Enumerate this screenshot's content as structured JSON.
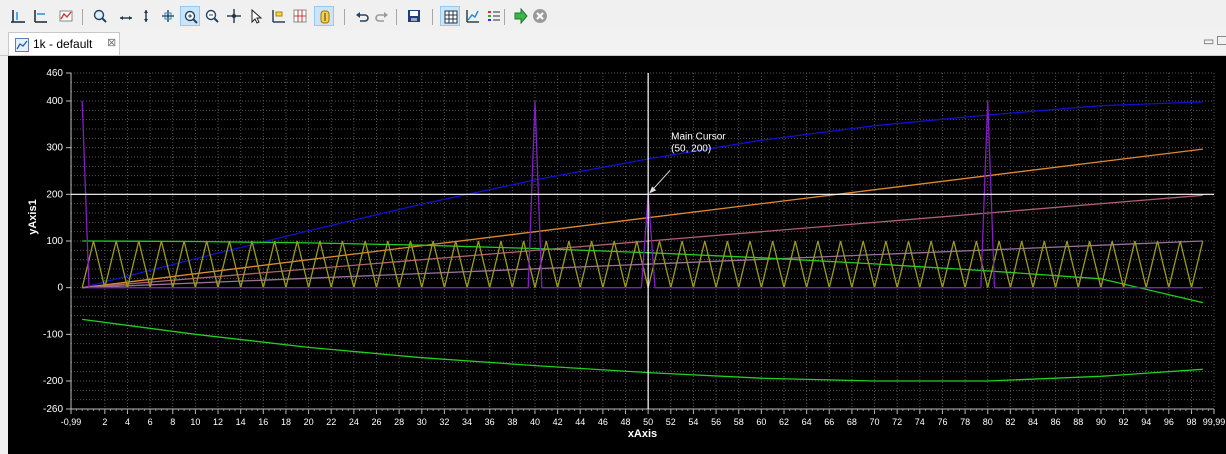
{
  "toolbar": {
    "icons": [
      {
        "name": "x-axis-icon",
        "active": false
      },
      {
        "name": "y-axis-icon",
        "active": false
      },
      {
        "name": "add-trace-icon",
        "active": false
      },
      {
        "name": "zoom-icon",
        "active": false
      },
      {
        "name": "horizontal-zoom-icon",
        "active": false
      },
      {
        "name": "vertical-zoom-icon",
        "active": false
      },
      {
        "name": "zoom-fit-icon",
        "active": false
      },
      {
        "name": "zoom-in-icon",
        "active": true
      },
      {
        "name": "zoom-out-icon",
        "active": false
      },
      {
        "name": "pan-icon",
        "active": false
      },
      {
        "name": "pointer-icon",
        "active": false
      },
      {
        "name": "annotation-icon",
        "active": false
      },
      {
        "name": "grid-annotation-icon",
        "active": false
      },
      {
        "name": "cursor-icon",
        "active": true
      },
      {
        "name": "undo-icon",
        "active": false
      },
      {
        "name": "redo-icon",
        "active": false
      },
      {
        "name": "save-snapshot-icon",
        "active": false
      },
      {
        "name": "grid-icon",
        "active": true
      },
      {
        "name": "autoscale-icon",
        "active": false
      },
      {
        "name": "legend-icon",
        "active": false
      },
      {
        "name": "run-icon",
        "active": false
      },
      {
        "name": "stop-icon",
        "active": false
      }
    ]
  },
  "tab": {
    "label": "1k - default",
    "close_glyph": "⊠"
  },
  "window_controls": {
    "minimize_glyph": "▭"
  },
  "colors": {
    "background": "#000000",
    "grid": "#555555",
    "axis_text": "#ffffff",
    "cursor": "#ffffff"
  },
  "chart_data": {
    "type": "line",
    "xlabel": "xAxis",
    "ylabel": "yAxis1",
    "xlim": [
      -0.99,
      99.99
    ],
    "ylim": [
      -260,
      460
    ],
    "x_ticks": [
      "-0,99",
      "2",
      "4",
      "6",
      "8",
      "10",
      "12",
      "14",
      "16",
      "18",
      "20",
      "22",
      "24",
      "26",
      "28",
      "30",
      "32",
      "34",
      "36",
      "38",
      "40",
      "42",
      "44",
      "46",
      "48",
      "50",
      "52",
      "54",
      "56",
      "58",
      "60",
      "62",
      "64",
      "66",
      "68",
      "70",
      "72",
      "74",
      "76",
      "78",
      "80",
      "82",
      "84",
      "86",
      "88",
      "90",
      "92",
      "94",
      "96",
      "98",
      "99,99"
    ],
    "y_ticks": [
      "460",
      "400",
      "300",
      "200",
      "100",
      "0",
      "-100",
      "-200",
      "-260"
    ],
    "grid": true,
    "cursor": {
      "label": "Main Cursor",
      "coords": "(50, 200)",
      "x": 50,
      "y": 200
    },
    "series": [
      {
        "color": "#1010d0",
        "x": [
          0,
          10,
          20,
          30,
          40,
          50,
          60,
          70,
          80,
          90,
          99
        ],
        "values": [
          0,
          62,
          122,
          179,
          231,
          276,
          316,
          347,
          370,
          390,
          398
        ]
      },
      {
        "color": "#e08a30",
        "x": [
          0,
          99
        ],
        "values": [
          0,
          297
        ]
      },
      {
        "color": "#b06070",
        "x": [
          0,
          99
        ],
        "values": [
          0,
          198
        ]
      },
      {
        "color": "#9a6fa0",
        "x": [
          0,
          99
        ],
        "values": [
          0,
          100
        ]
      },
      {
        "color": "#20d020",
        "x": [
          0,
          10,
          20,
          30,
          40,
          50,
          60,
          70,
          80,
          90,
          99
        ],
        "values": [
          100,
          99,
          96,
          91,
          84,
          75,
          64,
          51,
          36,
          19,
          -32
        ]
      },
      {
        "color": "#20d020",
        "x": [
          0,
          10,
          20,
          30,
          40,
          50,
          60,
          70,
          80,
          90,
          99
        ],
        "values": [
          -68,
          -100,
          -128,
          -150,
          -167,
          -182,
          -194,
          -200,
          -200,
          -190,
          -175
        ]
      },
      {
        "color": "#9b9b20",
        "type": "triangle",
        "period": 2,
        "min": 0,
        "max": 100
      },
      {
        "color": "#8020c0",
        "type": "spikes",
        "positions": [
          0,
          40,
          50,
          80
        ],
        "heights": [
          400,
          400,
          200,
          400
        ]
      }
    ]
  }
}
